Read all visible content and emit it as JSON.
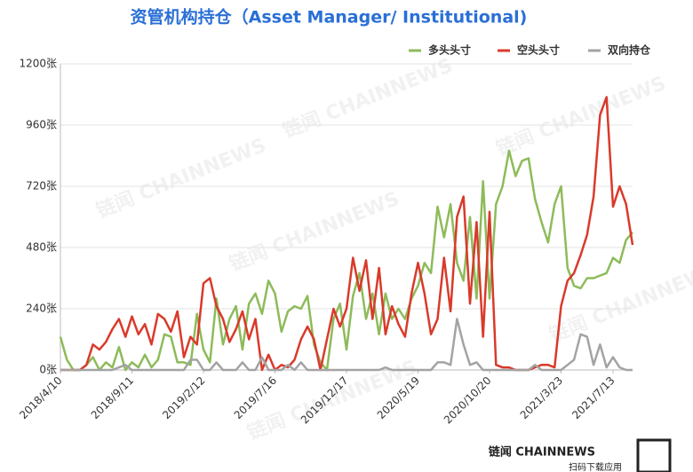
{
  "chart_data": {
    "type": "line",
    "title": "资管机构持仓（Asset Manager/ Institutional)",
    "categories": [
      "2018/4/10",
      null,
      null,
      null,
      null,
      null,
      null,
      null,
      null,
      null,
      null,
      "2018/9/11",
      null,
      null,
      null,
      null,
      null,
      null,
      null,
      null,
      null,
      null,
      "2019/2/12",
      null,
      null,
      null,
      null,
      null,
      null,
      null,
      null,
      null,
      null,
      "2019/7/16",
      null,
      null,
      null,
      null,
      null,
      null,
      null,
      null,
      null,
      null,
      "2019/12/17",
      null,
      null,
      null,
      null,
      null,
      null,
      null,
      null,
      null,
      null,
      "2020/5/19",
      null,
      null,
      null,
      null,
      null,
      null,
      null,
      null,
      null,
      null,
      "2020/10/20",
      null,
      null,
      null,
      null,
      null,
      null,
      null,
      null,
      null,
      null,
      "2021/3/23",
      null,
      null,
      null,
      null,
      null,
      null,
      null,
      "2021/7/13",
      null,
      null,
      null
    ],
    "series": [
      {
        "name": "多头头寸",
        "color": "#8dbb5a",
        "values": [
          130,
          40,
          0,
          0,
          20,
          50,
          0,
          30,
          10,
          90,
          0,
          30,
          10,
          60,
          10,
          40,
          140,
          130,
          30,
          30,
          20,
          220,
          80,
          30,
          280,
          100,
          200,
          250,
          80,
          260,
          300,
          220,
          350,
          300,
          150,
          230,
          250,
          240,
          290,
          100,
          30,
          0,
          200,
          260,
          80,
          290,
          380,
          200,
          300,
          140,
          300,
          200,
          240,
          200,
          280,
          330,
          420,
          380,
          640,
          520,
          650,
          420,
          350,
          600,
          280,
          740,
          280,
          650,
          720,
          860,
          760,
          820,
          830,
          670,
          580,
          500,
          650,
          720,
          400,
          330,
          320,
          360,
          360,
          370,
          380,
          440,
          420,
          510,
          540
        ]
      },
      {
        "name": "空头头寸",
        "color": "#d93a2b",
        "values": [
          0,
          0,
          0,
          0,
          20,
          100,
          80,
          110,
          160,
          200,
          130,
          210,
          140,
          180,
          100,
          220,
          200,
          150,
          230,
          50,
          130,
          100,
          340,
          360,
          250,
          200,
          110,
          160,
          230,
          120,
          200,
          0,
          60,
          0,
          20,
          10,
          40,
          120,
          170,
          120,
          0,
          120,
          240,
          170,
          240,
          440,
          310,
          430,
          200,
          400,
          140,
          250,
          180,
          130,
          300,
          420,
          300,
          140,
          200,
          440,
          230,
          600,
          680,
          260,
          580,
          130,
          620,
          20,
          10,
          10,
          0,
          0,
          0,
          10,
          20,
          20,
          10,
          250,
          350,
          380,
          450,
          530,
          680,
          1000,
          1070,
          640,
          720,
          650,
          490
        ]
      },
      {
        "name": "双向持仓",
        "color": "#a3a3a3",
        "values": [
          0,
          0,
          0,
          0,
          0,
          0,
          0,
          0,
          0,
          10,
          20,
          0,
          0,
          0,
          0,
          0,
          0,
          0,
          0,
          0,
          40,
          40,
          0,
          0,
          30,
          0,
          0,
          0,
          30,
          0,
          0,
          50,
          0,
          0,
          0,
          20,
          0,
          30,
          0,
          0,
          0,
          0,
          0,
          0,
          0,
          0,
          0,
          0,
          0,
          0,
          10,
          0,
          0,
          0,
          0,
          0,
          0,
          0,
          30,
          30,
          20,
          200,
          100,
          20,
          30,
          0,
          0,
          0,
          0,
          0,
          0,
          0,
          0,
          20,
          0,
          0,
          0,
          0,
          20,
          40,
          140,
          130,
          20,
          100,
          10,
          50,
          10,
          0,
          0
        ]
      }
    ],
    "ylim": [
      0,
      1200
    ],
    "yticks": [
      {
        "value": 0,
        "label": "0张"
      },
      {
        "value": 240,
        "label": "240张"
      },
      {
        "value": 480,
        "label": "480张"
      },
      {
        "value": 720,
        "label": "720张"
      },
      {
        "value": 960,
        "label": "960张"
      },
      {
        "value": 1200,
        "label": "1200张"
      }
    ],
    "grid": true,
    "legend": "top-right",
    "watermark": "链闻 CHAINNEWS",
    "brand": "链闻 CHAINNEWS",
    "brand_tagline": "扫码下载应用"
  }
}
